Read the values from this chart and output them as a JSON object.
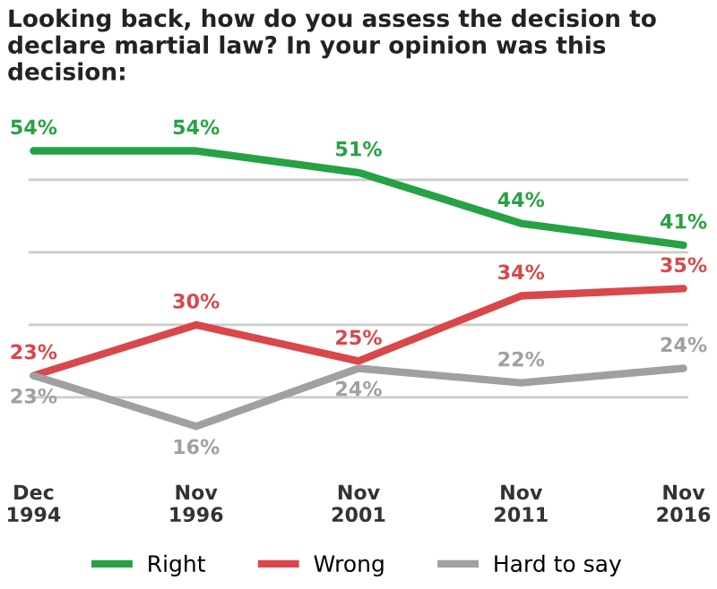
{
  "chart_data": {
    "type": "line",
    "title": "Looking back, how do you assess the decision to declare martial law? In your opinion was this decision:",
    "categories": [
      "Dec\n1994",
      "Nov\n1996",
      "Nov\n2001",
      "Nov\n2011",
      "Nov\n2016"
    ],
    "series": [
      {
        "name": "Right",
        "color": "#27a243",
        "values": [
          54,
          54,
          51,
          44,
          41
        ],
        "value_labels": [
          "54%",
          "54%",
          "51%",
          "44%",
          "41%"
        ]
      },
      {
        "name": "Wrong",
        "color": "#d9474a",
        "values": [
          23,
          30,
          25,
          34,
          35
        ],
        "value_labels": [
          "23%",
          "30%",
          "25%",
          "34%",
          "35%"
        ]
      },
      {
        "name": "Hard to say",
        "color": "#a0a0a0",
        "values": [
          23,
          16,
          24,
          22,
          24
        ],
        "value_labels": [
          "23%",
          "16%",
          "24%",
          "22%",
          "24%"
        ]
      }
    ],
    "tick_labels": "x",
    "grid": "y",
    "legend": "bottom",
    "marker": "none",
    "line_style": "solid"
  }
}
